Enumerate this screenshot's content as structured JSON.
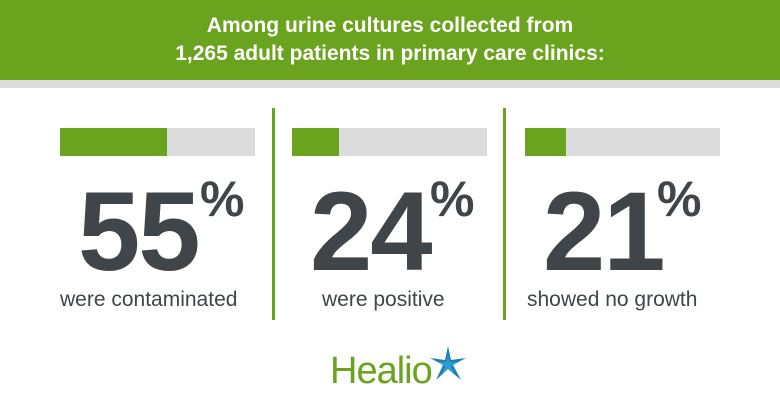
{
  "header": {
    "line1": "Among urine cultures collected from",
    "line2": "1,265 adult patients in primary care clinics:"
  },
  "stats": [
    {
      "value": "55",
      "unit": "%",
      "label": "were contaminated",
      "fill": 0.55
    },
    {
      "value": "24",
      "unit": "%",
      "label": "were positive",
      "fill": 0.24
    },
    {
      "value": "21",
      "unit": "%",
      "label": "showed no growth",
      "fill": 0.21
    }
  ],
  "logo": {
    "text": "Healio"
  },
  "colors": {
    "accent": "#6aa41e",
    "text": "#3f4549",
    "track": "#dcdcdc",
    "star": "#1f7fb0"
  },
  "icons": {
    "logo_mark": "star-burst-icon"
  }
}
